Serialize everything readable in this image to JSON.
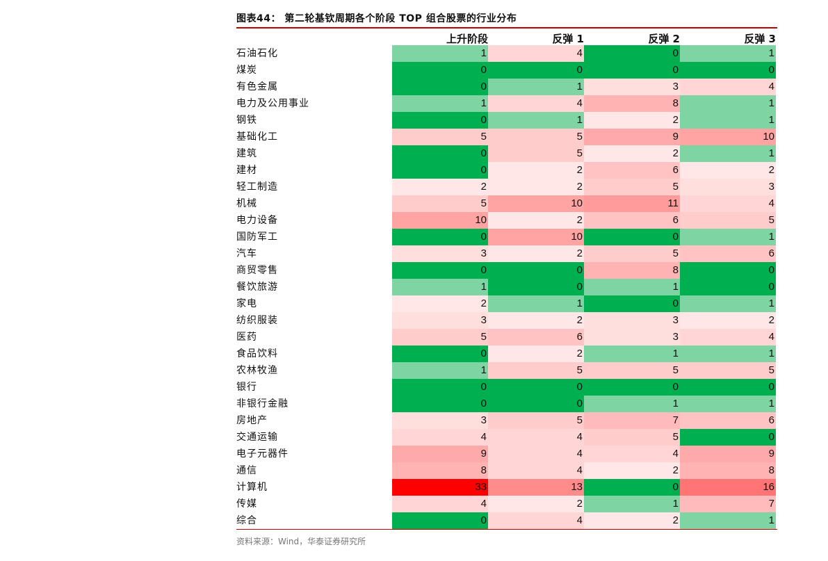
{
  "title": "图表44：  第二轮基钦周期各个阶段 TOP 组合股票的行业分布",
  "source": "资料来源：Wind，华泰证券研究所",
  "colors": {
    "rule": "#c00000",
    "zero": "#00b050",
    "one": "#7fd4a4",
    "scale_low": "#ffffff",
    "scale_high": "#ff0000"
  },
  "chart_data": {
    "type": "table",
    "columns": [
      "上升阶段",
      "反弹 1",
      "反弹 2",
      "反弹 3"
    ],
    "rows": [
      {
        "label": "石油石化",
        "values": [
          1,
          4,
          0,
          1
        ]
      },
      {
        "label": "煤炭",
        "values": [
          0,
          0,
          0,
          0
        ]
      },
      {
        "label": "有色金属",
        "values": [
          0,
          1,
          3,
          4
        ]
      },
      {
        "label": "电力及公用事业",
        "values": [
          1,
          4,
          8,
          1
        ]
      },
      {
        "label": "钢铁",
        "values": [
          0,
          1,
          2,
          1
        ]
      },
      {
        "label": "基础化工",
        "values": [
          5,
          5,
          9,
          10
        ]
      },
      {
        "label": "建筑",
        "values": [
          0,
          5,
          2,
          1
        ]
      },
      {
        "label": "建材",
        "values": [
          0,
          2,
          6,
          2
        ]
      },
      {
        "label": "轻工制造",
        "values": [
          2,
          2,
          5,
          3
        ]
      },
      {
        "label": "机械",
        "values": [
          5,
          10,
          11,
          4
        ]
      },
      {
        "label": "电力设备",
        "values": [
          10,
          2,
          6,
          5
        ]
      },
      {
        "label": "国防军工",
        "values": [
          0,
          10,
          0,
          1
        ]
      },
      {
        "label": "汽车",
        "values": [
          3,
          2,
          5,
          6
        ]
      },
      {
        "label": "商贸零售",
        "values": [
          0,
          0,
          8,
          0
        ]
      },
      {
        "label": "餐饮旅游",
        "values": [
          1,
          0,
          1,
          0
        ]
      },
      {
        "label": "家电",
        "values": [
          2,
          1,
          0,
          1
        ]
      },
      {
        "label": "纺织服装",
        "values": [
          3,
          2,
          3,
          2
        ]
      },
      {
        "label": "医药",
        "values": [
          5,
          6,
          3,
          4
        ]
      },
      {
        "label": "食品饮料",
        "values": [
          0,
          2,
          1,
          1
        ]
      },
      {
        "label": "农林牧渔",
        "values": [
          1,
          5,
          5,
          5
        ]
      },
      {
        "label": "银行",
        "values": [
          0,
          0,
          0,
          0
        ]
      },
      {
        "label": "非银行金融",
        "values": [
          0,
          0,
          1,
          1
        ]
      },
      {
        "label": "房地产",
        "values": [
          3,
          5,
          7,
          6
        ]
      },
      {
        "label": "交通运输",
        "values": [
          4,
          4,
          5,
          0
        ]
      },
      {
        "label": "电子元器件",
        "values": [
          9,
          4,
          4,
          9
        ]
      },
      {
        "label": "通信",
        "values": [
          8,
          4,
          2,
          8
        ]
      },
      {
        "label": "计算机",
        "values": [
          33,
          13,
          0,
          16
        ]
      },
      {
        "label": "传媒",
        "values": [
          4,
          2,
          1,
          7
        ]
      },
      {
        "label": "综合",
        "values": [
          0,
          4,
          2,
          1
        ]
      }
    ]
  }
}
